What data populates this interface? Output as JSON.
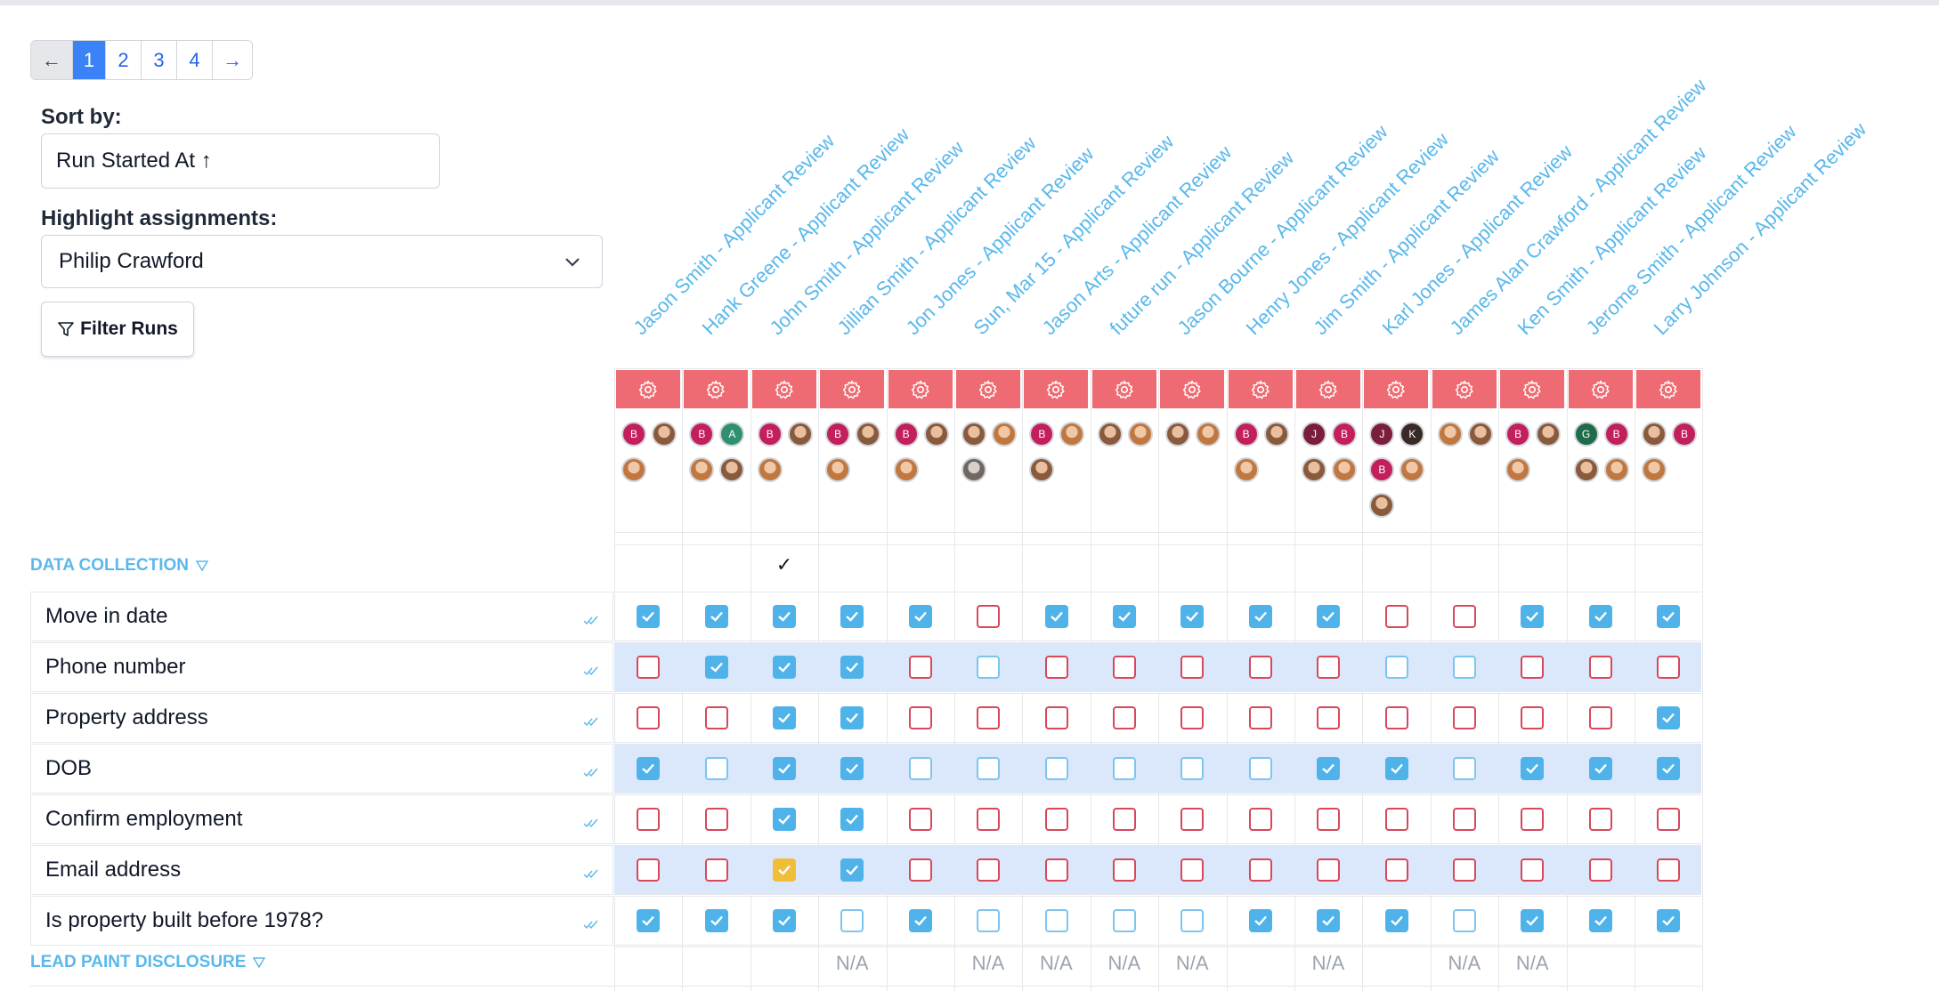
{
  "pagination": {
    "prev": "←",
    "pages": [
      "1",
      "2",
      "3",
      "4"
    ],
    "active": "1",
    "next": "→"
  },
  "sort": {
    "label": "Sort by:",
    "value": "Run Started At ↑"
  },
  "highlight": {
    "label": "Highlight assignments:",
    "value": "Philip Crawford"
  },
  "filter_button": {
    "label": "Filter Runs"
  },
  "columns": [
    "Jason Smith - Applicant Review",
    "Hank Greene - Applicant Review",
    "John Smith - Applicant Review",
    "Jillian Smith - Applicant Review",
    "Jon Jones - Applicant Review",
    "Sun, Mar 15 - Applicant Review",
    "Jason Arts - Applicant Review",
    "future run - Applicant Review",
    "Jason Bourne - Applicant Review",
    "Henry Jones - Applicant Review",
    "Jim Smith - Applicant Review",
    "Karl Jones - Applicant Review",
    "James Alan Crawford - Applicant Review",
    "Ken Smith - Applicant Review",
    "Jerome Smith - Applicant Review",
    "Larry Johnson - Applicant Review"
  ],
  "assignees": [
    [
      [
        "b",
        "B"
      ],
      [
        "p1",
        ""
      ],
      [
        "p2",
        ""
      ]
    ],
    [
      [
        "b",
        "B"
      ],
      [
        "a",
        "A"
      ],
      [
        "p2",
        ""
      ],
      [
        "p1",
        ""
      ]
    ],
    [
      [
        "b",
        "B"
      ],
      [
        "p1",
        ""
      ],
      [
        "p2",
        ""
      ]
    ],
    [
      [
        "b",
        "B"
      ],
      [
        "p1",
        ""
      ],
      [
        "p2",
        ""
      ]
    ],
    [
      [
        "b",
        "B"
      ],
      [
        "p1",
        ""
      ],
      [
        "p2",
        ""
      ]
    ],
    [
      [
        "p1",
        ""
      ],
      [
        "p2",
        ""
      ],
      [
        "p3",
        ""
      ]
    ],
    [
      [
        "b",
        "B"
      ],
      [
        "p2",
        ""
      ],
      [
        "p1",
        ""
      ]
    ],
    [
      [
        "p1",
        ""
      ],
      [
        "p2",
        ""
      ]
    ],
    [
      [
        "p1",
        ""
      ],
      [
        "p2",
        ""
      ]
    ],
    [
      [
        "b",
        "B"
      ],
      [
        "p1",
        ""
      ],
      [
        "p2",
        ""
      ]
    ],
    [
      [
        "j",
        "J"
      ],
      [
        "b",
        "B"
      ],
      [
        "p1",
        ""
      ],
      [
        "p2",
        ""
      ]
    ],
    [
      [
        "j",
        "J"
      ],
      [
        "k",
        "K"
      ],
      [
        "b",
        "B"
      ],
      [
        "p2",
        ""
      ],
      [
        "p1",
        ""
      ]
    ],
    [
      [
        "p2",
        ""
      ],
      [
        "p1",
        ""
      ]
    ],
    [
      [
        "b",
        "B"
      ],
      [
        "p1",
        ""
      ],
      [
        "p2",
        ""
      ]
    ],
    [
      [
        "g",
        "G"
      ],
      [
        "b",
        "B"
      ],
      [
        "p1",
        ""
      ],
      [
        "p2",
        ""
      ]
    ],
    [
      [
        "p1",
        ""
      ],
      [
        "b",
        "B"
      ],
      [
        "p2",
        ""
      ]
    ]
  ],
  "sections": {
    "data_collection": "DATA COLLECTION",
    "lead_paint": "LEAD PAINT DISCLOSURE"
  },
  "section_checkmarks": [
    "",
    "",
    "✓",
    "",
    "",
    "",
    "",
    "",
    "",
    "",
    "",
    "",
    "",
    "",
    "",
    ""
  ],
  "rows": [
    {
      "label": "Move in date",
      "cells": "CCCCCRCCCCCRRCCC"
    },
    {
      "label": "Phone number",
      "cells": "RCCCRBRRRRRBBRRR"
    },
    {
      "label": "Property address",
      "cells": "RRCCRRRRRRRRRRRC"
    },
    {
      "label": "DOB",
      "cells": "CBCCBBBBBBCCBCCC"
    },
    {
      "label": "Confirm employment",
      "cells": "RRCCRRRRRRRRRRRR"
    },
    {
      "label": "Email address",
      "cells": "RRGCRRRRRRRRRRRR"
    },
    {
      "label": "Is property built before 1978?",
      "cells": "CCCBCBBBBCCCBCCC"
    }
  ],
  "lead_paint_values": [
    "",
    "",
    "",
    "N/A",
    "",
    "N/A",
    "N/A",
    "N/A",
    "N/A",
    "",
    "N/A",
    "",
    "N/A",
    "N/A",
    "",
    ""
  ],
  "colors": {
    "accent": "#5ab8ec",
    "config_red": "#ef6b73",
    "checked": "#4fb3ea",
    "unchecked_red": "#d9485a",
    "highlight_band": "#dbe8fb"
  }
}
